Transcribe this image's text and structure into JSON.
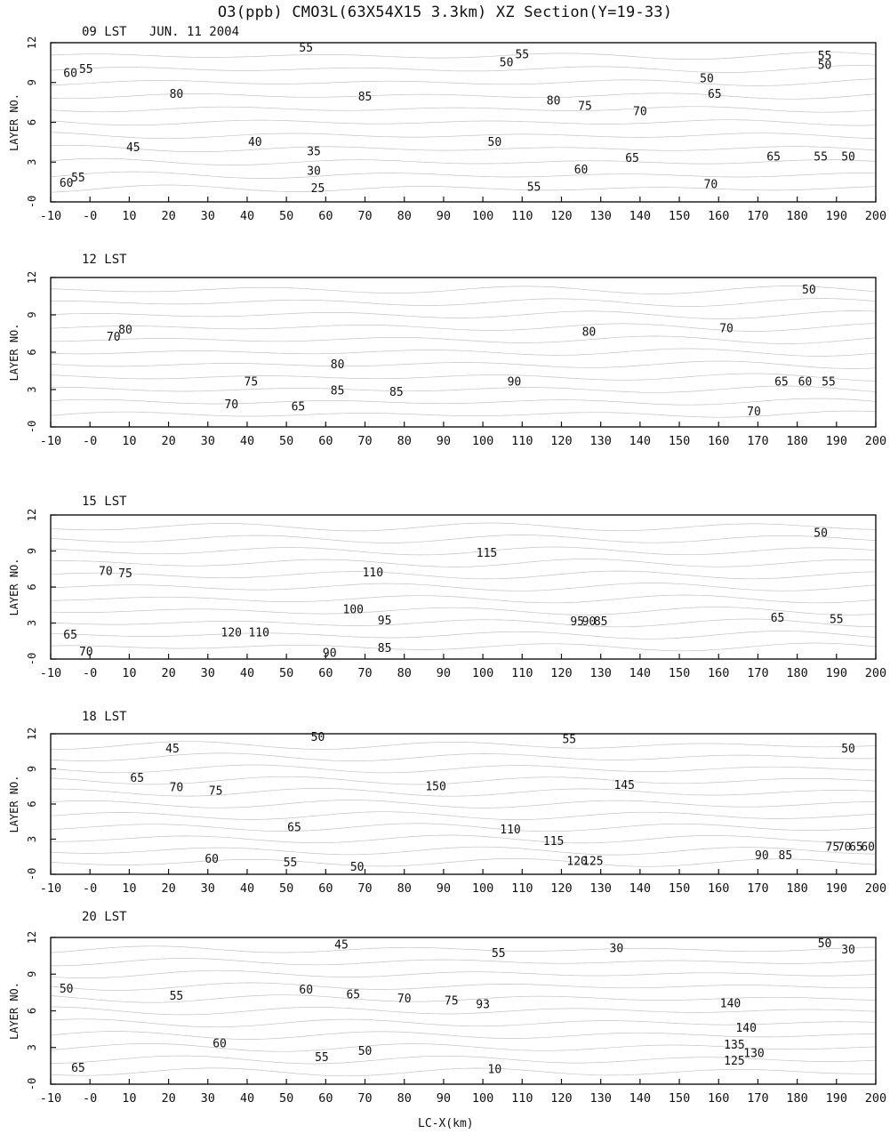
{
  "figure_title": "O3(ppb)   CMO3L(63X54X15 3.3km)   XZ Section(Y=19-33)",
  "x_axis_title": "LC-X(km)",
  "y_axis_title": "LAYER NO.",
  "x_ticks": [
    "-10",
    "-0",
    "10",
    "20",
    "30",
    "40",
    "50",
    "60",
    "70",
    "80",
    "90",
    "100",
    "110",
    "120",
    "130",
    "140",
    "150",
    "160",
    "170",
    "180",
    "190",
    "200"
  ],
  "y_ticks": [
    "-0",
    "3",
    "6",
    "9",
    "12"
  ],
  "chart_data": [
    {
      "type": "contour",
      "title": "09 LST   JUN. 11 2004",
      "xlabel": "",
      "ylabel": "LAYER NO.",
      "xlim": [
        -10,
        200
      ],
      "ylim": [
        0,
        12
      ],
      "contour_labels": [
        {
          "v": "55",
          "x": 55,
          "y": 11.6
        },
        {
          "v": "55",
          "x": 110,
          "y": 11.1
        },
        {
          "v": "50",
          "x": 106,
          "y": 10.5
        },
        {
          "v": "55",
          "x": 187,
          "y": 11.0
        },
        {
          "v": "50",
          "x": 187,
          "y": 10.3
        },
        {
          "v": "60",
          "x": -5,
          "y": 9.7
        },
        {
          "v": "55",
          "x": -1,
          "y": 10.0
        },
        {
          "v": "50",
          "x": 157,
          "y": 9.3
        },
        {
          "v": "65",
          "x": 159,
          "y": 8.1
        },
        {
          "v": "80",
          "x": 22,
          "y": 8.1
        },
        {
          "v": "85",
          "x": 70,
          "y": 7.9
        },
        {
          "v": "80",
          "x": 118,
          "y": 7.6
        },
        {
          "v": "75",
          "x": 126,
          "y": 7.2
        },
        {
          "v": "70",
          "x": 140,
          "y": 6.8
        },
        {
          "v": "40",
          "x": 42,
          "y": 4.5
        },
        {
          "v": "35",
          "x": 57,
          "y": 3.8
        },
        {
          "v": "30",
          "x": 57,
          "y": 2.3
        },
        {
          "v": "25",
          "x": 58,
          "y": 1.0
        },
        {
          "v": "45",
          "x": 11,
          "y": 4.1
        },
        {
          "v": "50",
          "x": 103,
          "y": 4.5
        },
        {
          "v": "60",
          "x": 125,
          "y": 2.4
        },
        {
          "v": "55",
          "x": 113,
          "y": 1.1
        },
        {
          "v": "65",
          "x": 138,
          "y": 3.3
        },
        {
          "v": "70",
          "x": 158,
          "y": 1.3
        },
        {
          "v": "65",
          "x": 174,
          "y": 3.4
        },
        {
          "v": "55",
          "x": 186,
          "y": 3.4
        },
        {
          "v": "50",
          "x": 193,
          "y": 3.4
        },
        {
          "v": "60",
          "x": -6,
          "y": 1.4
        },
        {
          "v": "55",
          "x": -3,
          "y": 1.8
        }
      ]
    },
    {
      "type": "contour",
      "title": "12 LST",
      "xlabel": "",
      "ylabel": "LAYER NO.",
      "xlim": [
        -10,
        200
      ],
      "ylim": [
        0,
        12
      ],
      "contour_labels": [
        {
          "v": "50",
          "x": 183,
          "y": 11.0
        },
        {
          "v": "70",
          "x": 6,
          "y": 7.2
        },
        {
          "v": "80",
          "x": 9,
          "y": 7.8
        },
        {
          "v": "80",
          "x": 127,
          "y": 7.6
        },
        {
          "v": "70",
          "x": 162,
          "y": 7.9
        },
        {
          "v": "80",
          "x": 63,
          "y": 5.0
        },
        {
          "v": "85",
          "x": 63,
          "y": 2.9
        },
        {
          "v": "75",
          "x": 41,
          "y": 3.6
        },
        {
          "v": "70",
          "x": 36,
          "y": 1.8
        },
        {
          "v": "65",
          "x": 53,
          "y": 1.6
        },
        {
          "v": "85",
          "x": 78,
          "y": 2.8
        },
        {
          "v": "90",
          "x": 108,
          "y": 3.6
        },
        {
          "v": "70",
          "x": 169,
          "y": 1.2
        },
        {
          "v": "65",
          "x": 176,
          "y": 3.6
        },
        {
          "v": "60",
          "x": 182,
          "y": 3.6
        },
        {
          "v": "55",
          "x": 188,
          "y": 3.6
        }
      ]
    },
    {
      "type": "contour",
      "title": "15 LST",
      "xlabel": "",
      "ylabel": "LAYER NO.",
      "xlim": [
        -10,
        200
      ],
      "ylim": [
        0,
        12
      ],
      "contour_labels": [
        {
          "v": "50",
          "x": 186,
          "y": 10.5
        },
        {
          "v": "115",
          "x": 101,
          "y": 8.8
        },
        {
          "v": "110",
          "x": 72,
          "y": 7.2
        },
        {
          "v": "70",
          "x": 4,
          "y": 7.3
        },
        {
          "v": "75",
          "x": 9,
          "y": 7.1
        },
        {
          "v": "100",
          "x": 67,
          "y": 4.1
        },
        {
          "v": "95",
          "x": 75,
          "y": 3.2
        },
        {
          "v": "120",
          "x": 36,
          "y": 2.2
        },
        {
          "v": "110",
          "x": 43,
          "y": 2.2
        },
        {
          "v": "85",
          "x": 75,
          "y": 0.9
        },
        {
          "v": "90",
          "x": 61,
          "y": 0.5
        },
        {
          "v": "65",
          "x": -5,
          "y": 2.0
        },
        {
          "v": "70",
          "x": -1,
          "y": 0.6
        },
        {
          "v": "95",
          "x": 124,
          "y": 3.1
        },
        {
          "v": "90",
          "x": 127,
          "y": 3.1
        },
        {
          "v": "85",
          "x": 130,
          "y": 3.1
        },
        {
          "v": "65",
          "x": 175,
          "y": 3.4
        },
        {
          "v": "55",
          "x": 190,
          "y": 3.3
        }
      ]
    },
    {
      "type": "contour",
      "title": "18 LST",
      "xlabel": "",
      "ylabel": "LAYER NO.",
      "xlim": [
        -10,
        200
      ],
      "ylim": [
        0,
        12
      ],
      "contour_labels": [
        {
          "v": "45",
          "x": 21,
          "y": 10.7
        },
        {
          "v": "50",
          "x": 58,
          "y": 11.7
        },
        {
          "v": "55",
          "x": 122,
          "y": 11.5
        },
        {
          "v": "50",
          "x": 193,
          "y": 10.7
        },
        {
          "v": "65",
          "x": 12,
          "y": 8.2
        },
        {
          "v": "70",
          "x": 22,
          "y": 7.4
        },
        {
          "v": "75",
          "x": 32,
          "y": 7.1
        },
        {
          "v": "150",
          "x": 88,
          "y": 7.5
        },
        {
          "v": "145",
          "x": 136,
          "y": 7.6
        },
        {
          "v": "65",
          "x": 52,
          "y": 4.0
        },
        {
          "v": "110",
          "x": 107,
          "y": 3.8
        },
        {
          "v": "115",
          "x": 118,
          "y": 2.8
        },
        {
          "v": "120",
          "x": 124,
          "y": 1.1
        },
        {
          "v": "125",
          "x": 128,
          "y": 1.1
        },
        {
          "v": "60",
          "x": 31,
          "y": 1.3
        },
        {
          "v": "55",
          "x": 51,
          "y": 1.0
        },
        {
          "v": "50",
          "x": 68,
          "y": 0.6
        },
        {
          "v": "90",
          "x": 171,
          "y": 1.6
        },
        {
          "v": "85",
          "x": 177,
          "y": 1.6
        },
        {
          "v": "75",
          "x": 189,
          "y": 2.3
        },
        {
          "v": "70",
          "x": 192,
          "y": 2.3
        },
        {
          "v": "65",
          "x": 195,
          "y": 2.3
        },
        {
          "v": "60",
          "x": 198,
          "y": 2.3
        }
      ]
    },
    {
      "type": "contour",
      "title": "20 LST",
      "xlabel": "",
      "ylabel": "LAYER NO.",
      "xlim": [
        -10,
        200
      ],
      "ylim": [
        0,
        12
      ],
      "contour_labels": [
        {
          "v": "45",
          "x": 64,
          "y": 11.4
        },
        {
          "v": "55",
          "x": 104,
          "y": 10.7
        },
        {
          "v": "30",
          "x": 134,
          "y": 11.1
        },
        {
          "v": "50",
          "x": 187,
          "y": 11.5
        },
        {
          "v": "30",
          "x": 193,
          "y": 11.0
        },
        {
          "v": "50",
          "x": -6,
          "y": 7.8
        },
        {
          "v": "55",
          "x": 22,
          "y": 7.2
        },
        {
          "v": "60",
          "x": 55,
          "y": 7.7
        },
        {
          "v": "65",
          "x": 67,
          "y": 7.3
        },
        {
          "v": "70",
          "x": 80,
          "y": 7.0
        },
        {
          "v": "75",
          "x": 92,
          "y": 6.8
        },
        {
          "v": "93",
          "x": 100,
          "y": 6.5
        },
        {
          "v": "140",
          "x": 163,
          "y": 6.6
        },
        {
          "v": "140",
          "x": 167,
          "y": 4.6
        },
        {
          "v": "135",
          "x": 164,
          "y": 3.2
        },
        {
          "v": "130",
          "x": 169,
          "y": 2.5
        },
        {
          "v": "125",
          "x": 164,
          "y": 1.9
        },
        {
          "v": "60",
          "x": 33,
          "y": 3.3
        },
        {
          "v": "55",
          "x": 59,
          "y": 2.2
        },
        {
          "v": "50",
          "x": 70,
          "y": 2.7
        },
        {
          "v": "65",
          "x": -3,
          "y": 1.3
        },
        {
          "v": "10",
          "x": 103,
          "y": 1.2
        }
      ]
    }
  ]
}
